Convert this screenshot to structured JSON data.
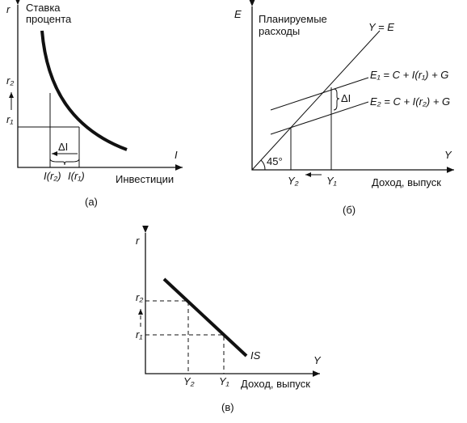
{
  "panels": [
    {
      "label": "(а)",
      "axis_y": "r",
      "axis_y_title": [
        "Ставка",
        "процента"
      ],
      "ticks_y": [
        "r₂",
        "r₁"
      ],
      "delta": "ΔI",
      "axis_x": "I",
      "ticks_x": [
        "I(r₂)",
        "I(r₁)"
      ],
      "axis_x_title": "Инвестиции"
    },
    {
      "label": "(б)",
      "axis_y": "E",
      "axis_y_title": [
        "Планируемые",
        "расходы"
      ],
      "line_45": "Y = E",
      "line_e1": "E₁ = C + I(r₁) + G",
      "line_e2": "E₂ = C + I(r₂) + G",
      "delta": "ΔI",
      "angle": "45°",
      "axis_x": "Y",
      "ticks_x": [
        "Y₂",
        "Y₁"
      ],
      "axis_x_title": "Доход, выпуск"
    },
    {
      "label": "(в)",
      "axis_y": "r",
      "ticks_y": [
        "r₂",
        "r₁"
      ],
      "curve": "IS",
      "axis_x": "Y",
      "ticks_x": [
        "Y₂",
        "Y₁"
      ],
      "axis_x_title": "Доход, выпуск"
    }
  ]
}
